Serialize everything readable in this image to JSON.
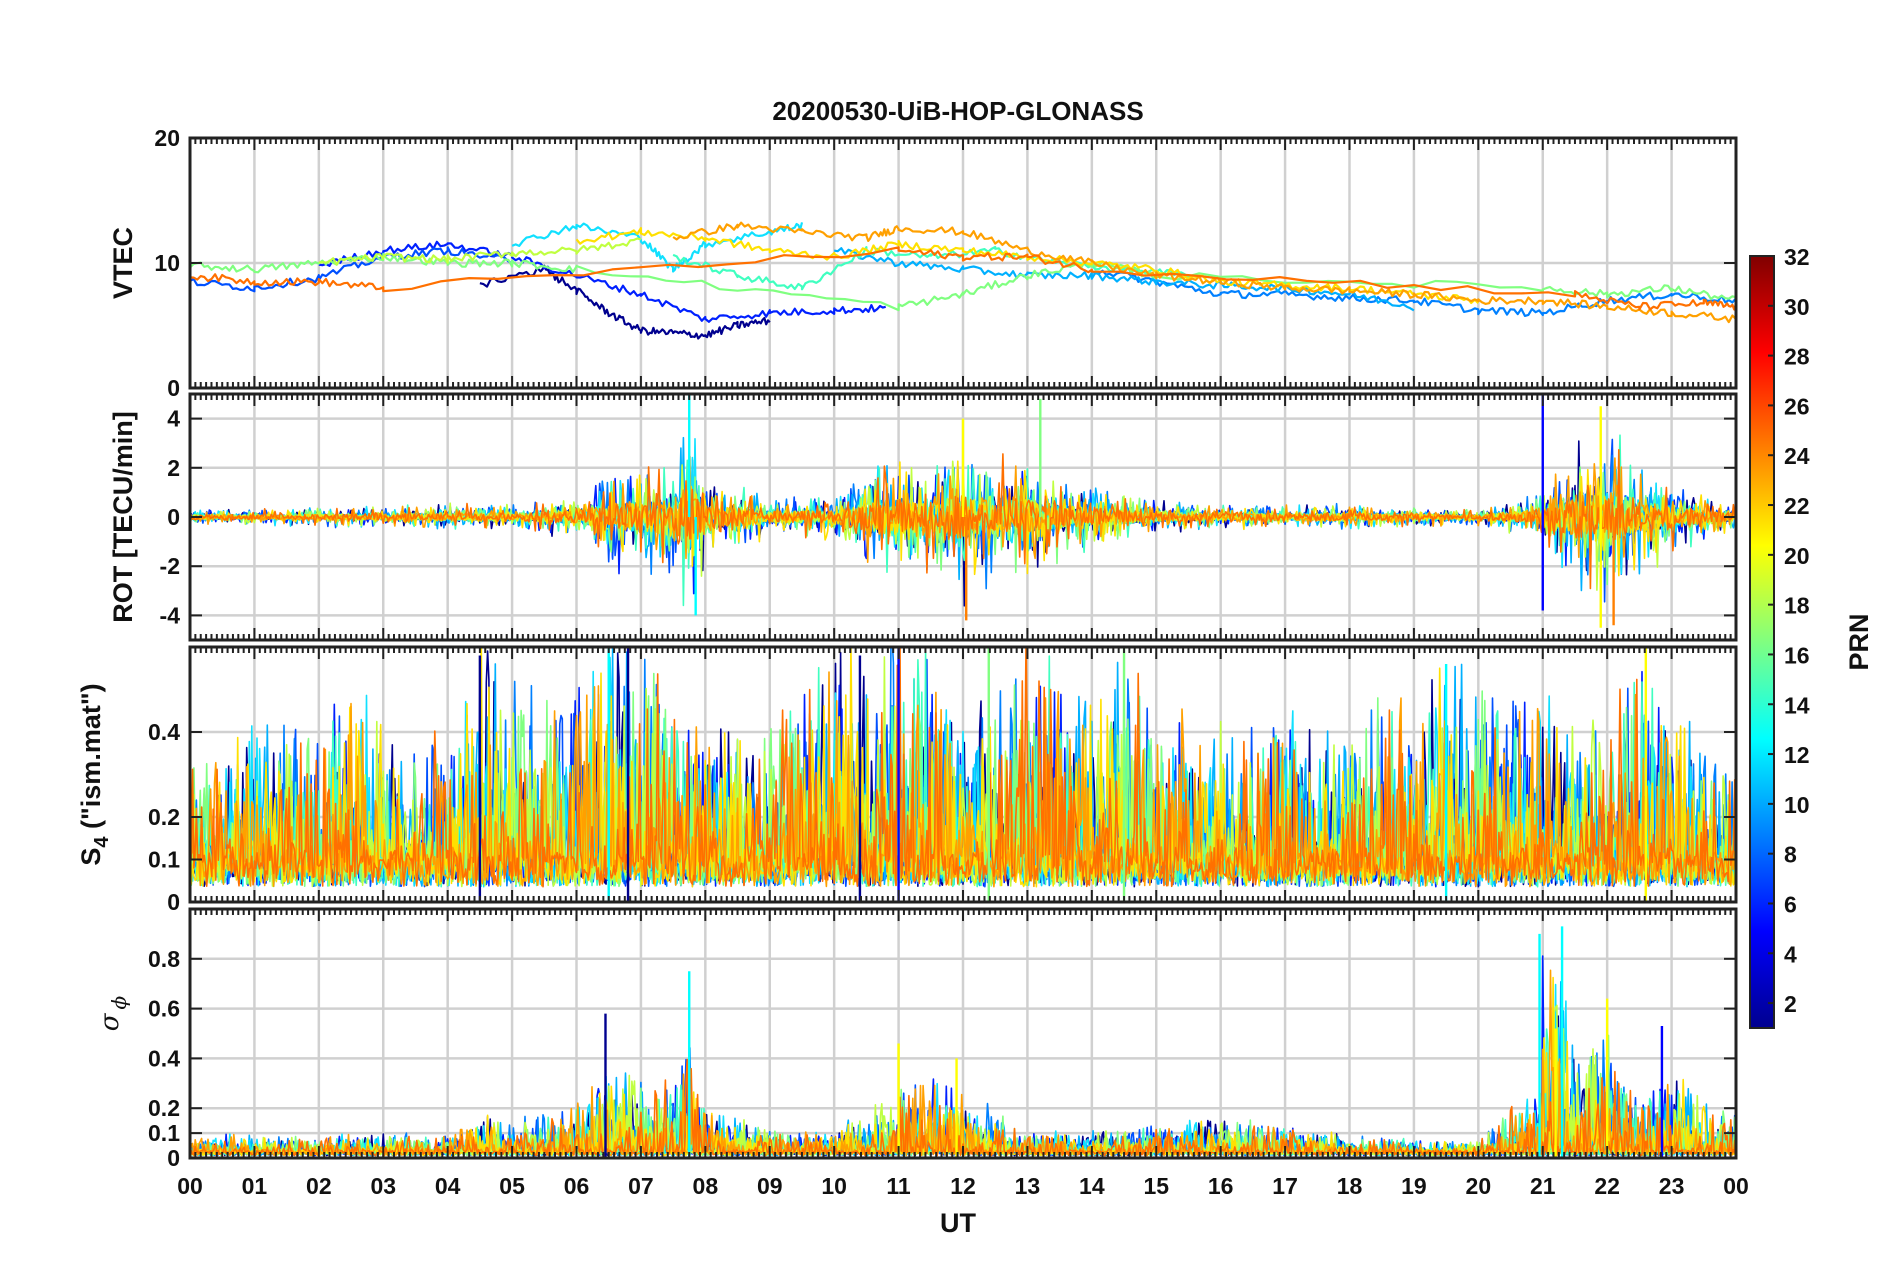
{
  "figure": {
    "title": "20200530-UiB-HOP-GLONASS"
  },
  "chart_data": {
    "type": "line",
    "x_tick_labels": [
      "00",
      "01",
      "02",
      "03",
      "04",
      "05",
      "06",
      "07",
      "08",
      "09",
      "10",
      "11",
      "12",
      "13",
      "14",
      "15",
      "16",
      "17",
      "18",
      "19",
      "20",
      "21",
      "22",
      "23",
      "00"
    ],
    "xlabel": "UT",
    "xlim": [
      0,
      24
    ],
    "panels": [
      {
        "name": "vtec",
        "ylabel": "VTEC",
        "ylim": [
          0,
          20
        ],
        "yticks": [
          0,
          10,
          20
        ],
        "ytick_labels": [
          "0",
          "10",
          "20"
        ],
        "grid": true,
        "series": [
          {
            "prn": 2,
            "color": "#00008f",
            "x": [
              4.5,
              5.5,
              6.0,
              6.5,
              7.0,
              7.5,
              8.0,
              8.5,
              9.0
            ],
            "y": [
              8.2,
              9.5,
              7.8,
              6.0,
              4.6,
              4.4,
              4.2,
              5.0,
              5.4
            ]
          },
          {
            "prn": 4,
            "color": "#0020ff",
            "x": [
              2.0,
              3.0,
              4.0,
              5.0,
              6.0,
              7.0,
              8.0,
              9.0,
              10.0,
              10.8
            ],
            "y": [
              9.8,
              11.0,
              11.5,
              10.5,
              9.0,
              7.5,
              5.5,
              6.0,
              6.2,
              6.4
            ]
          },
          {
            "prn": 6,
            "color": "#0050ff",
            "x": [
              0.0,
              1.0,
              2.0,
              3.0,
              4.0,
              5.0
            ],
            "y": [
              8.5,
              8.0,
              8.8,
              10.5,
              11.0,
              10.2
            ]
          },
          {
            "prn": 8,
            "color": "#0080ff",
            "x": [
              14.0,
              15.0,
              16.0,
              17.0,
              18.0,
              19.0,
              20.0,
              21.0,
              22.0,
              23.0,
              24.0
            ],
            "y": [
              9.5,
              8.5,
              7.5,
              7.5,
              7.2,
              7.0,
              6.2,
              6.0,
              7.0,
              7.5,
              7.0
            ]
          },
          {
            "prn": 10,
            "color": "#00b0ff",
            "x": [
              10.0,
              11.0,
              12.0,
              13.0,
              14.0,
              15.0,
              16.0,
              17.0,
              18.0,
              19.0
            ],
            "y": [
              11.0,
              10.0,
              9.5,
              9.0,
              9.0,
              8.5,
              8.2,
              8.0,
              7.5,
              6.5
            ]
          },
          {
            "prn": 12,
            "color": "#10e0ff",
            "x": [
              5.0,
              6.0,
              7.0,
              7.5,
              8.0,
              9.0,
              9.5
            ],
            "y": [
              11.5,
              13.0,
              12.0,
              9.5,
              11.5,
              12.5,
              13.0
            ]
          },
          {
            "prn": 14,
            "color": "#40ffc0",
            "x": [
              7.5,
              8.5,
              9.5,
              10.5,
              11.5,
              12.5,
              13.5,
              14.5,
              15.5
            ],
            "y": [
              10.5,
              9.0,
              8.0,
              11.0,
              10.5,
              11.0,
              10.0,
              9.5,
              9.0
            ]
          },
          {
            "prn": 16,
            "color": "#80ff80",
            "x": [
              0.0,
              1.0,
              2.0,
              3.0,
              4.0,
              5.0,
              6.0,
              11.0,
              12.0,
              13.0,
              14.0,
              15.0,
              21.0,
              22.0,
              23.0,
              24.0
            ],
            "y": [
              9.8,
              9.5,
              10.0,
              10.5,
              10.0,
              10.0,
              9.5,
              6.5,
              7.5,
              9.0,
              10.0,
              9.0,
              8.0,
              7.5,
              8.0,
              7.0
            ]
          },
          {
            "prn": 18,
            "color": "#c0ff40",
            "x": [
              2.0,
              3.0,
              4.0,
              5.0,
              6.0,
              7.0
            ],
            "y": [
              10.0,
              10.5,
              10.3,
              10.8,
              11.0,
              11.8
            ]
          },
          {
            "prn": 20,
            "color": "#ffe000",
            "x": [
              6.0,
              7.0,
              8.0,
              9.0,
              10.0,
              11.0,
              12.0,
              13.0,
              14.0,
              15.0,
              16.0,
              17.0,
              18.0,
              19.0,
              20.0
            ],
            "y": [
              11.8,
              12.5,
              12.0,
              11.0,
              10.5,
              11.5,
              11.0,
              10.5,
              10.0,
              9.5,
              8.5,
              8.2,
              8.0,
              7.5,
              7.0
            ]
          },
          {
            "prn": 22,
            "color": "#ffa000",
            "x": [
              7.5,
              8.5,
              9.5,
              10.5,
              11.0,
              12.0,
              13.0,
              14.0,
              15.0,
              16.0,
              17.0,
              18.0,
              19.0,
              20.0,
              21.0,
              22.0,
              23.0,
              24.0
            ],
            "y": [
              12.0,
              13.0,
              12.5,
              12.0,
              12.8,
              12.5,
              11.0,
              10.0,
              9.0,
              8.5,
              8.0,
              7.8,
              7.5,
              7.0,
              7.0,
              6.5,
              6.0,
              5.5
            ]
          },
          {
            "prn": 24,
            "color": "#ff7000",
            "x": [
              0.0,
              1.0,
              2.0,
              3.0,
              11.0,
              12.0,
              13.0,
              14.0,
              21.5,
              22.5,
              23.5,
              24.0
            ],
            "y": [
              9.0,
              8.5,
              8.5,
              8.0,
              11.0,
              10.5,
              10.5,
              9.5,
              7.5,
              6.5,
              6.8,
              6.5
            ]
          }
        ]
      },
      {
        "name": "rot",
        "ylabel": "ROT [TECU/min]",
        "ylim": [
          -5,
          5
        ],
        "yticks": [
          -4,
          -2,
          0,
          2,
          4
        ],
        "ytick_labels": [
          "-4",
          "-2",
          "0",
          "2",
          "4"
        ],
        "grid": true,
        "activity_envelope": {
          "x": [
            0,
            1,
            2,
            3,
            4,
            5,
            6,
            6.5,
            7,
            7.5,
            7.75,
            8,
            8.5,
            9,
            10,
            10.5,
            11,
            11.5,
            12,
            12.5,
            13,
            13.5,
            14,
            15,
            16,
            17,
            18,
            19,
            20,
            21,
            21.5,
            22,
            22.5,
            23,
            23.5,
            24
          ],
          "amplitude": [
            0.3,
            0.3,
            0.35,
            0.4,
            0.5,
            0.5,
            0.8,
            1.8,
            2.0,
            2.5,
            4.5,
            1.5,
            1.2,
            0.8,
            0.8,
            2.0,
            2.5,
            2.0,
            3.0,
            2.0,
            2.5,
            1.5,
            1.2,
            0.6,
            0.5,
            0.4,
            0.5,
            0.4,
            0.3,
            1.0,
            3.0,
            3.5,
            2.0,
            1.5,
            0.8,
            0.5
          ]
        },
        "notable_peaks": [
          {
            "x": 7.75,
            "y": 5.0,
            "prn": 12
          },
          {
            "x": 7.85,
            "y": -4.0,
            "prn": 12
          },
          {
            "x": 12.0,
            "y": 4.0,
            "prn": 22
          },
          {
            "x": 12.05,
            "y": -4.2,
            "prn": 24
          },
          {
            "x": 13.2,
            "y": 4.8,
            "prn": 16
          },
          {
            "x": 21.0,
            "y": 5.0,
            "prn": 4
          },
          {
            "x": 21.0,
            "y": -3.8,
            "prn": 4
          },
          {
            "x": 21.9,
            "y": 4.5,
            "prn": 22
          },
          {
            "x": 21.9,
            "y": -4.5,
            "prn": 22
          },
          {
            "x": 22.1,
            "y": -4.4,
            "prn": 24
          }
        ]
      },
      {
        "name": "s4",
        "ylabel": "S4 (\"ism.mat\")",
        "ylabel_main": "S",
        "ylabel_sub": "4",
        "ylabel_rest": " (\"ism.mat\")",
        "ylim": [
          0,
          0.6
        ],
        "yticks": [
          0,
          0.1,
          0.2,
          0.4
        ],
        "ytick_labels": [
          "0",
          "0.1",
          "0.2",
          "0.4"
        ],
        "grid": true,
        "activity_envelope": {
          "x": [
            0,
            1,
            2,
            2.5,
            3,
            4,
            4.5,
            5,
            6,
            6.5,
            7,
            8,
            9,
            10,
            10.5,
            11,
            12,
            13,
            14,
            14.5,
            15,
            16,
            17,
            18,
            19,
            19.5,
            20,
            21,
            22,
            22.5,
            23,
            24
          ],
          "amplitude": [
            0.3,
            0.35,
            0.4,
            0.5,
            0.35,
            0.3,
            0.55,
            0.45,
            0.45,
            0.6,
            0.55,
            0.35,
            0.4,
            0.55,
            0.55,
            0.6,
            0.45,
            0.55,
            0.45,
            0.6,
            0.4,
            0.35,
            0.4,
            0.35,
            0.45,
            0.55,
            0.45,
            0.4,
            0.35,
            0.5,
            0.4,
            0.25
          ]
        },
        "notable_peaks": [
          {
            "x": 4.5,
            "y": 0.58,
            "prn": 2
          },
          {
            "x": 6.5,
            "y": 0.6,
            "prn": 12
          },
          {
            "x": 6.8,
            "y": 0.6,
            "prn": 2
          },
          {
            "x": 10.4,
            "y": 0.58,
            "prn": 2
          },
          {
            "x": 11.0,
            "y": 0.6,
            "prn": 4
          },
          {
            "x": 12.4,
            "y": 0.6,
            "prn": 16
          },
          {
            "x": 14.5,
            "y": 0.6,
            "prn": 16
          },
          {
            "x": 19.5,
            "y": 0.56,
            "prn": 12
          },
          {
            "x": 22.6,
            "y": 0.6,
            "prn": 22
          }
        ]
      },
      {
        "name": "sigma_phi",
        "ylabel": "σ ϕ",
        "ylabel_main": "σ",
        "ylabel_sub": "ϕ",
        "ylim": [
          0,
          1.0
        ],
        "yticks": [
          0,
          0.1,
          0.2,
          0.4,
          0.6,
          0.8
        ],
        "ytick_labels": [
          "0",
          "0.1",
          "0.2",
          "0.4",
          "0.6",
          "0.8"
        ],
        "grid": true,
        "activity_envelope": {
          "x": [
            0,
            4,
            4.5,
            5,
            6,
            6.5,
            7,
            7.5,
            7.75,
            8,
            9,
            10,
            11,
            11.5,
            12,
            13,
            15,
            16,
            17,
            18,
            19,
            20,
            20.9,
            21,
            21.3,
            21.5,
            22,
            22.5,
            23,
            24
          ],
          "amplitude": [
            0.07,
            0.08,
            0.15,
            0.15,
            0.2,
            0.35,
            0.3,
            0.3,
            0.5,
            0.2,
            0.1,
            0.08,
            0.3,
            0.3,
            0.3,
            0.08,
            0.12,
            0.15,
            0.12,
            0.07,
            0.05,
            0.05,
            0.3,
            0.9,
            0.9,
            0.4,
            0.5,
            0.2,
            0.35,
            0.15
          ]
        },
        "notable_peaks": [
          {
            "x": 6.45,
            "y": 0.58,
            "prn": 2
          },
          {
            "x": 7.75,
            "y": 0.75,
            "prn": 12
          },
          {
            "x": 11.0,
            "y": 0.46,
            "prn": 22
          },
          {
            "x": 11.9,
            "y": 0.4,
            "prn": 22
          },
          {
            "x": 20.95,
            "y": 0.9,
            "prn": 14
          },
          {
            "x": 21.2,
            "y": 0.52,
            "prn": 22
          },
          {
            "x": 21.3,
            "y": 0.93,
            "prn": 12
          },
          {
            "x": 22.0,
            "y": 0.64,
            "prn": 22
          },
          {
            "x": 22.85,
            "y": 0.53,
            "prn": 4
          }
        ]
      }
    ],
    "colorbar": {
      "label": "PRN",
      "range": [
        1,
        32
      ],
      "tick_values": [
        2,
        4,
        6,
        8,
        10,
        12,
        14,
        16,
        18,
        20,
        22,
        24,
        26,
        28,
        30,
        32
      ],
      "tick_labels": [
        "2",
        "4",
        "6",
        "8",
        "10",
        "12",
        "14",
        "16",
        "18",
        "20",
        "22",
        "24",
        "26",
        "28",
        "30",
        "32"
      ],
      "colormap": "jet",
      "stops": [
        "#00008f",
        "#0000ff",
        "#0080ff",
        "#00ffff",
        "#80ff80",
        "#ffff00",
        "#ff8000",
        "#ff0000",
        "#800000"
      ]
    }
  }
}
